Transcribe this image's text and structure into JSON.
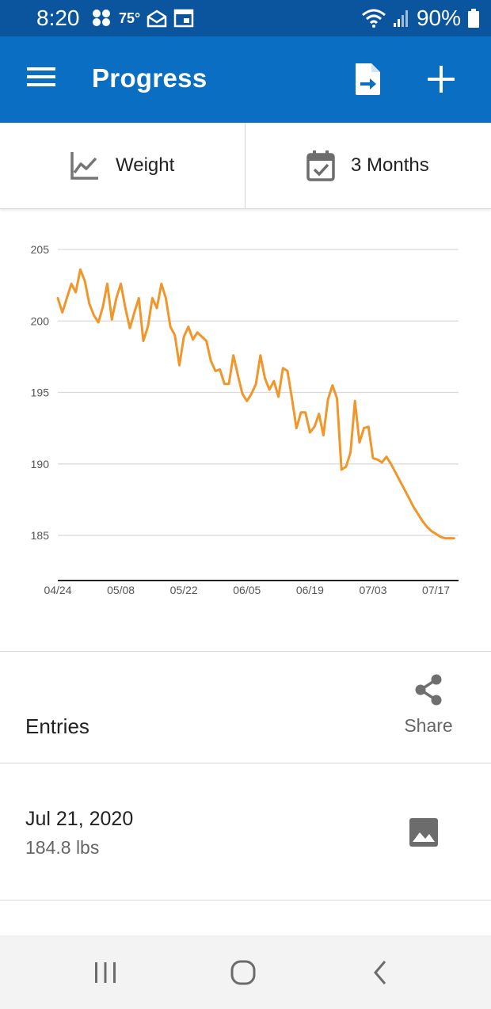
{
  "status_bar": {
    "time": "8:20",
    "temperature": "75°",
    "battery": "90%",
    "icons": [
      "notification-icon",
      "mail-icon",
      "calendar-icon",
      "wifi-icon",
      "signal-icon",
      "battery-icon"
    ]
  },
  "app_bar": {
    "title": "Progress",
    "menu_icon": "menu-icon",
    "export_icon": "export-file-icon",
    "add_icon": "add-icon",
    "color": "#0a6fc2"
  },
  "selectors": {
    "metric": {
      "label": "Weight",
      "icon": "line-chart-icon"
    },
    "range": {
      "label": "3 Months",
      "icon": "calendar-check-icon"
    }
  },
  "chart_data": {
    "type": "line",
    "color": "#f0962a",
    "y_ticks": [
      "205",
      "200",
      "195",
      "190",
      "185"
    ],
    "x_ticks": [
      "04/24",
      "05/08",
      "05/22",
      "06/05",
      "06/19",
      "07/03",
      "07/17"
    ],
    "ylim": [
      182,
      206
    ],
    "xlim": [
      0,
      89
    ],
    "grid": true,
    "series": [
      {
        "x": [
          0,
          1,
          2,
          3,
          4,
          5,
          6,
          7,
          8,
          9,
          10,
          11,
          12,
          13,
          14,
          15,
          16,
          17,
          18,
          19,
          20,
          21,
          22,
          23,
          24,
          25,
          26,
          27,
          28,
          29,
          30,
          31,
          32,
          33,
          34,
          35,
          36,
          37,
          38,
          39,
          40,
          41,
          42,
          43,
          44,
          45,
          46,
          47,
          48,
          49,
          50,
          51,
          52,
          53,
          54,
          55,
          56,
          57,
          58,
          59,
          60,
          61,
          62,
          63,
          64,
          65,
          66,
          67,
          68,
          69,
          70,
          71,
          72,
          73,
          74,
          75,
          76,
          77,
          78,
          79,
          80,
          81,
          82,
          83,
          84,
          85,
          86,
          87,
          88
        ],
        "y": [
          201.6,
          200.6,
          201.6,
          202.6,
          202.0,
          203.6,
          202.8,
          201.2,
          200.4,
          199.9,
          201.0,
          202.6,
          200.1,
          201.6,
          202.6,
          200.9,
          199.5,
          200.6,
          201.6,
          198.6,
          199.6,
          201.6,
          200.9,
          202.6,
          201.6,
          199.6,
          199.0,
          196.9,
          198.9,
          199.6,
          198.7,
          199.2,
          198.9,
          198.6,
          197.2,
          196.5,
          196.6,
          195.6,
          195.6,
          197.6,
          196.2,
          194.9,
          194.4,
          194.9,
          195.6,
          197.6,
          196.0,
          195.2,
          195.8,
          194.7,
          196.7,
          196.5,
          194.6,
          192.5,
          193.6,
          193.6,
          192.2,
          192.6,
          193.5,
          192.0,
          194.5,
          195.5,
          194.6,
          189.6,
          189.8,
          190.8,
          194.4,
          191.5,
          192.5,
          192.6,
          190.4,
          190.3,
          190.1,
          190.5,
          190.0,
          189.4,
          188.8,
          188.2,
          187.6,
          187.0,
          186.5,
          186.0,
          185.6,
          185.3,
          185.1,
          184.9,
          184.8,
          184.8,
          184.8
        ]
      }
    ]
  },
  "entries": {
    "title": "Entries",
    "share_label": "Share",
    "share_icon": "share-icon",
    "items": [
      {
        "date": "Jul 21, 2020",
        "value": "184.8 lbs",
        "icon": "photo-icon"
      }
    ]
  },
  "nav_bar": {
    "icons": [
      "recent-apps-icon",
      "home-icon",
      "back-icon"
    ]
  }
}
